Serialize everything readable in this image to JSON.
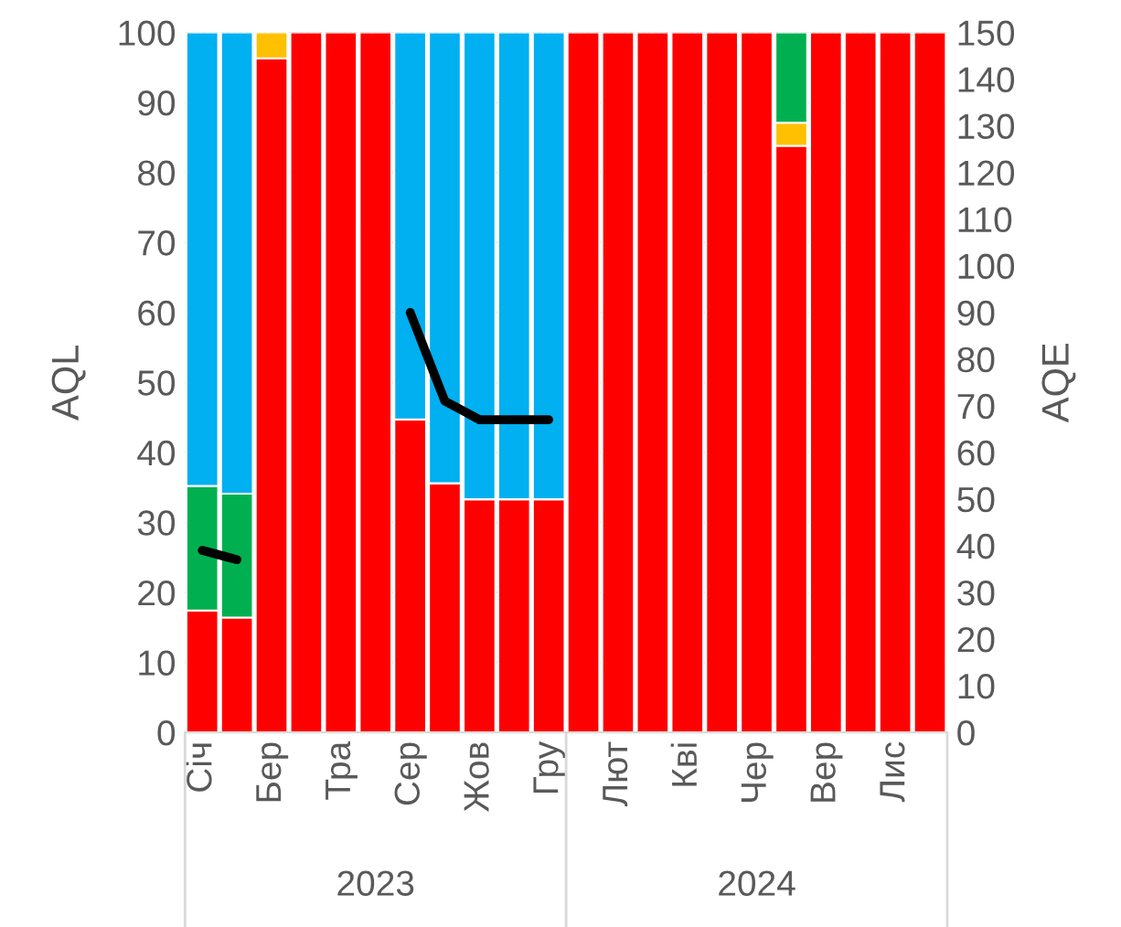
{
  "chart_data": {
    "type": "bar",
    "stacked": true,
    "ylabel": "AQL",
    "y2label": "AQE",
    "categories": [
      "Січ",
      null,
      "Бер",
      null,
      "Тра",
      null,
      "Сер",
      null,
      "Жов",
      null,
      "Гру",
      null,
      "Лют",
      null,
      "Кві",
      null,
      "Чер",
      null,
      "Вер",
      null,
      "Лис",
      null
    ],
    "series": [
      {
        "color": "#ff0000",
        "values": [
          17.4,
          16.4,
          96.3,
          100,
          100,
          100,
          44.7,
          35.6,
          33.3,
          33.3,
          33.3,
          100,
          100,
          100,
          100,
          100,
          100,
          83.8,
          100,
          100,
          100,
          100
        ]
      },
      {
        "color": "#ffc000",
        "values": [
          null,
          null,
          3.7,
          null,
          null,
          null,
          null,
          null,
          null,
          null,
          null,
          null,
          null,
          null,
          null,
          null,
          null,
          3.3,
          null,
          null,
          null,
          null
        ]
      },
      {
        "color": "#00b050",
        "values": [
          17.8,
          17.7,
          null,
          null,
          null,
          null,
          null,
          null,
          null,
          null,
          null,
          null,
          null,
          null,
          null,
          null,
          null,
          12.9,
          null,
          null,
          null,
          null
        ]
      },
      {
        "color": "#00b0f0",
        "values": [
          64.8,
          65.9,
          null,
          null,
          null,
          null,
          55.3,
          64.4,
          66.7,
          66.7,
          66.7,
          null,
          null,
          null,
          null,
          null,
          null,
          null,
          null,
          null,
          null,
          null
        ]
      },
      {
        "type": "line",
        "axis": "y2",
        "color": "#000000",
        "values": [
          39,
          37,
          null,
          null,
          null,
          null,
          90,
          71,
          67,
          67,
          67,
          null,
          null,
          null,
          null,
          null,
          null,
          null,
          null,
          null,
          null,
          null
        ]
      }
    ],
    "ylim": [
      0,
      100
    ],
    "yticks": [
      0,
      10,
      20,
      30,
      40,
      50,
      60,
      70,
      80,
      90,
      100
    ],
    "y2lim": [
      0,
      150
    ],
    "y2ticks": [
      0,
      10,
      20,
      30,
      40,
      50,
      60,
      70,
      80,
      90,
      100,
      110,
      120,
      130,
      140,
      150
    ],
    "grid": "y",
    "annotations": [
      "2023",
      "2024"
    ]
  }
}
